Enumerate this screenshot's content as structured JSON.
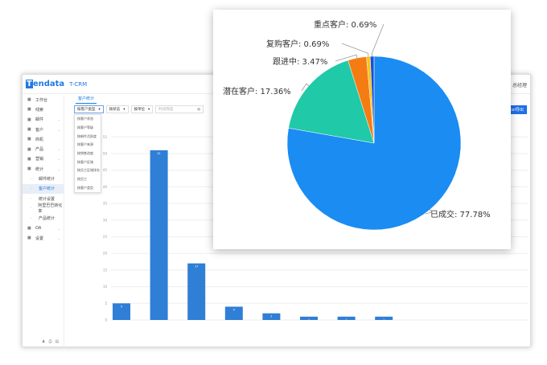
{
  "header": {
    "logo": "Tendata",
    "product": "T-CRM",
    "user": "总经理"
  },
  "sidebar": {
    "items": [
      {
        "label": "工作台",
        "icon": "home-icon"
      },
      {
        "label": "线索",
        "icon": "grid-icon"
      },
      {
        "label": "邮件",
        "icon": "mail-icon",
        "chev": true
      },
      {
        "label": "客户",
        "icon": "users-icon",
        "chev": true
      },
      {
        "label": "商机",
        "icon": "target-icon"
      },
      {
        "label": "产品",
        "icon": "box-icon",
        "chev": true
      },
      {
        "label": "营销",
        "icon": "megaphone-icon",
        "chev": true
      },
      {
        "label": "统计",
        "icon": "chart-icon",
        "chev": true
      },
      {
        "label": "邮件统计",
        "sub": true
      },
      {
        "label": "客户统计",
        "sub": true,
        "active": true
      },
      {
        "label": "统计设置",
        "sub": true
      },
      {
        "label": "阿里巴巴转化率",
        "sub": true
      },
      {
        "label": "产品统计",
        "sub": true
      },
      {
        "label": "OA",
        "icon": "oa-icon",
        "chev": true
      },
      {
        "label": "设置",
        "icon": "gear-icon",
        "chev": true
      }
    ]
  },
  "tab": "客户统计",
  "filters": {
    "type": "按客户类型",
    "status": "按状态",
    "unit": "按单位",
    "time_placeholder": "时间筛选"
  },
  "dropdown_options": [
    "按客户状态",
    "按客户等级",
    "按邮件活跃度",
    "按客户来源",
    "按销售进度",
    "按客户区域",
    "按员工区域排名",
    "按员工",
    "按客户类型"
  ],
  "export_label": "Excel导出",
  "chart_data": [
    {
      "type": "bar",
      "y_ticks": [
        0,
        5,
        10,
        15,
        20,
        25,
        30,
        35,
        40,
        45,
        50,
        55
      ],
      "ylim": [
        0,
        55
      ],
      "values": [
        5,
        51,
        17,
        4,
        2,
        1,
        1,
        1,
        0,
        0,
        0
      ],
      "color": "#2f7fd6",
      "grid": true
    },
    {
      "type": "pie",
      "slices": [
        {
          "name": "已成交",
          "value": 77.78,
          "label": "已成交: 77.78%",
          "color": "#1a8cf2"
        },
        {
          "name": "潜在客户",
          "value": 17.36,
          "label": "潜在客户: 17.36%",
          "color": "#20c9a8"
        },
        {
          "name": "跟进中",
          "value": 3.47,
          "label": "跟进中: 3.47%",
          "color": "#f57c12"
        },
        {
          "name": "复购客户",
          "value": 0.69,
          "label": "复购客户: 0.69%",
          "color": "#f5c518"
        },
        {
          "name": "重点客户",
          "value": 0.69,
          "label": "重点客户: 0.69%",
          "color": "#1750d8"
        }
      ]
    }
  ]
}
